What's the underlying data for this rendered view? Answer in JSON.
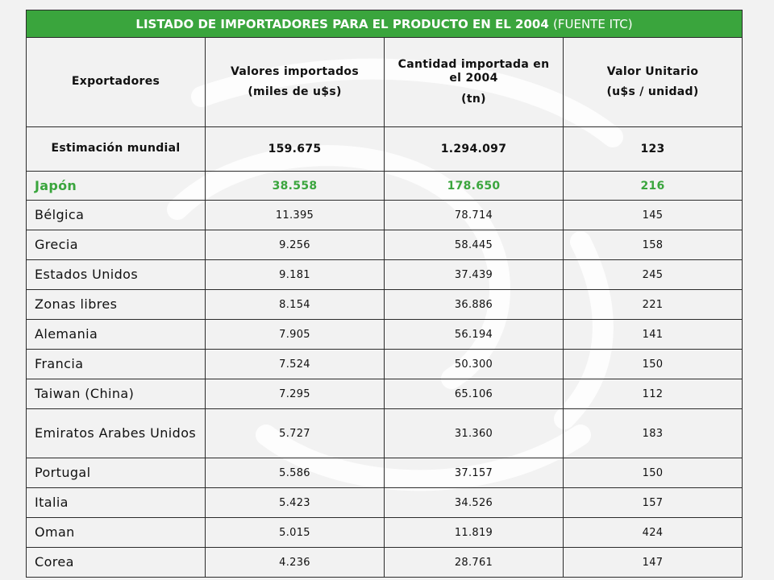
{
  "table": {
    "title_bold": "LISTADO DE IMPORTADORES PARA EL PRODUCTO EN EL 2004",
    "title_source": "(FUENTE ITC)",
    "headers": [
      {
        "main": "Exportadores",
        "sub": ""
      },
      {
        "main": "Valores importados",
        "sub": "(miles de u$s)"
      },
      {
        "main": "Cantidad importada en el 2004",
        "sub": "(tn)"
      },
      {
        "main": "Valor Unitario",
        "sub": "(u$s / unidad)"
      }
    ],
    "world": {
      "name": "Estimación mundial",
      "valores": "159.675",
      "cantidad": "1.294.097",
      "unitario": "123"
    },
    "highlight": {
      "name": "Japón",
      "valores": "38.558",
      "cantidad": "178.650",
      "unitario": "216"
    },
    "rows": [
      {
        "name": "Bélgica",
        "valores": "11.395",
        "cantidad": "78.714",
        "unitario": "145"
      },
      {
        "name": "Grecia",
        "valores": "9.256",
        "cantidad": "58.445",
        "unitario": "158"
      },
      {
        "name": "Estados Unidos",
        "valores": "9.181",
        "cantidad": "37.439",
        "unitario": "245"
      },
      {
        "name": "Zonas libres",
        "valores": "8.154",
        "cantidad": "36.886",
        "unitario": "221"
      },
      {
        "name": "Alemania",
        "valores": "7.905",
        "cantidad": "56.194",
        "unitario": "141"
      },
      {
        "name": "Francia",
        "valores": "7.524",
        "cantidad": "50.300",
        "unitario": "150"
      },
      {
        "name": "Taiwan (China)",
        "valores": "7.295",
        "cantidad": "65.106",
        "unitario": "112"
      },
      {
        "name": "Emiratos Arabes Unidos",
        "valores": "5.727",
        "cantidad": "31.360",
        "unitario": "183"
      },
      {
        "name": "Portugal",
        "valores": "5.586",
        "cantidad": "37.157",
        "unitario": "150"
      },
      {
        "name": "Italia",
        "valores": "5.423",
        "cantidad": "34.526",
        "unitario": "157"
      },
      {
        "name": "Oman",
        "valores": "5.015",
        "cantidad": "11.819",
        "unitario": "424"
      },
      {
        "name": "Corea",
        "valores": "4.236",
        "cantidad": "28.761",
        "unitario": "147"
      }
    ]
  },
  "colors": {
    "accent_green": "#3aa53d",
    "background": "#f2f2f2",
    "border": "#2b2b2b"
  }
}
